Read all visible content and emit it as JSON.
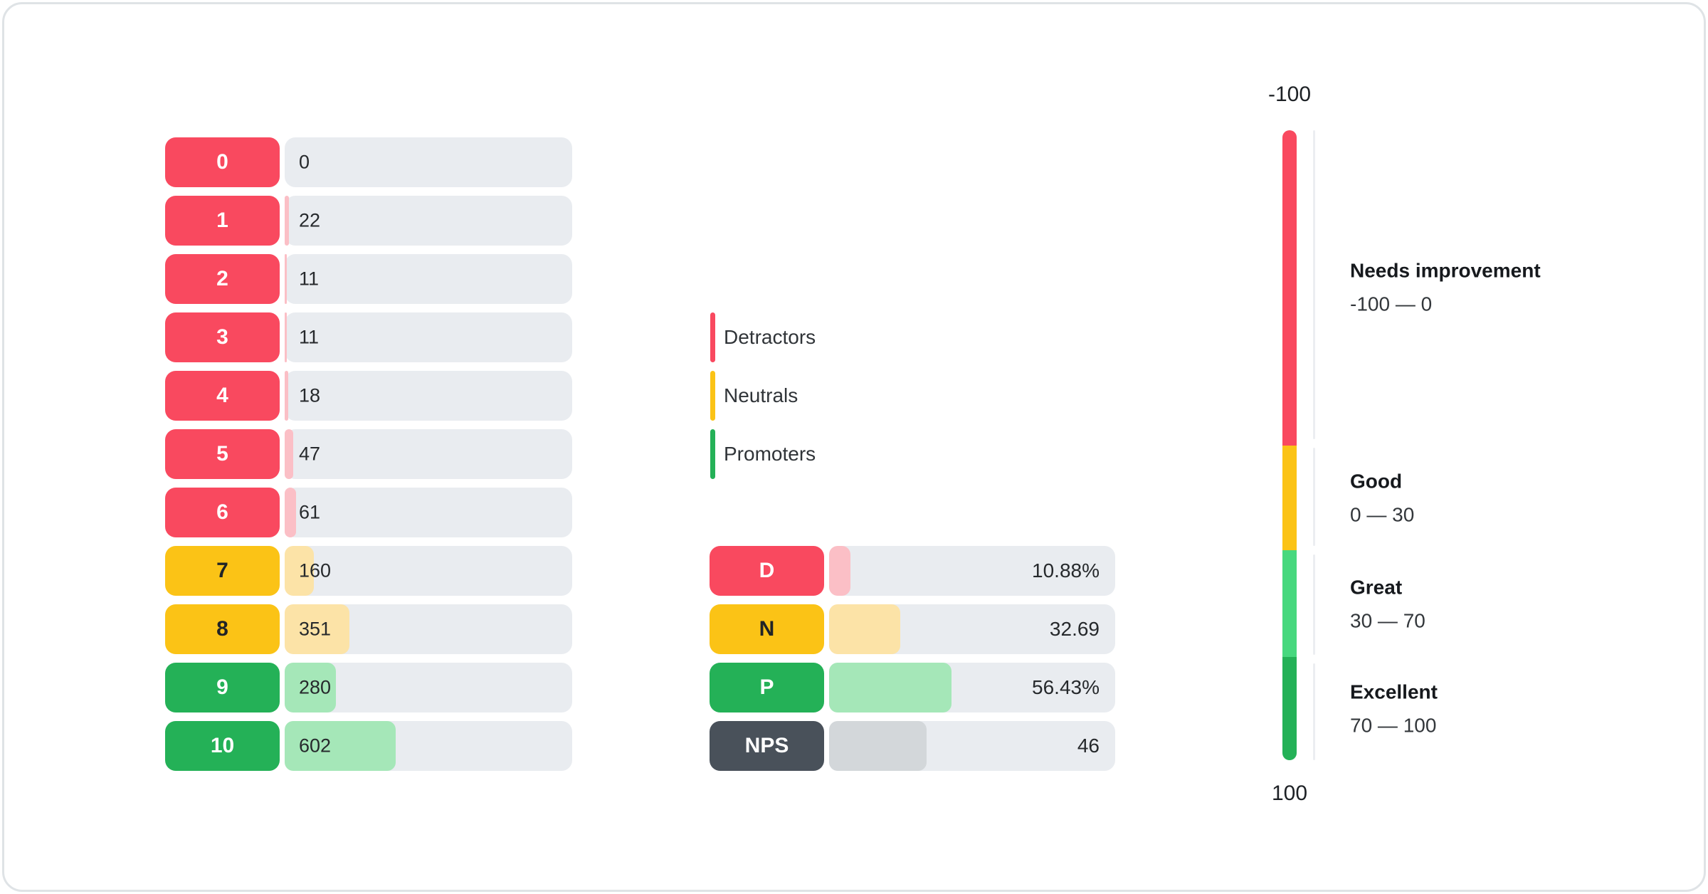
{
  "palette": {
    "red": "#f9495f",
    "pink_fill": "#fbbfc6",
    "yellow": "#fbc316",
    "yellow_fill": "#fce3a7",
    "green": "#24b157",
    "green_fill": "#a5e7b8",
    "gauge_light_green": "#47d87e",
    "slate": "#49515a",
    "gray_fill": "#d3d7da",
    "track": "#e9ecf0",
    "dark_text": "#26292c",
    "white_text": "#ffffff"
  },
  "score_chart": {
    "rows": [
      {
        "score": "0",
        "count": "0",
        "fill_pct": 0,
        "chip_bg": "#f9495f",
        "chip_fg": "#ffffff",
        "fill_bg": "#fbbfc6"
      },
      {
        "score": "1",
        "count": "22",
        "fill_pct": 1.41,
        "chip_bg": "#f9495f",
        "chip_fg": "#ffffff",
        "fill_bg": "#fbbfc6"
      },
      {
        "score": "2",
        "count": "11",
        "fill_pct": 0.7,
        "chip_bg": "#f9495f",
        "chip_fg": "#ffffff",
        "fill_bg": "#fbbfc6"
      },
      {
        "score": "3",
        "count": "11",
        "fill_pct": 0.7,
        "chip_bg": "#f9495f",
        "chip_fg": "#ffffff",
        "fill_bg": "#fbbfc6"
      },
      {
        "score": "4",
        "count": "18",
        "fill_pct": 1.15,
        "chip_bg": "#f9495f",
        "chip_fg": "#ffffff",
        "fill_bg": "#fbbfc6"
      },
      {
        "score": "5",
        "count": "47",
        "fill_pct": 3.01,
        "chip_bg": "#f9495f",
        "chip_fg": "#ffffff",
        "fill_bg": "#fbbfc6"
      },
      {
        "score": "6",
        "count": "61",
        "fill_pct": 3.9,
        "chip_bg": "#f9495f",
        "chip_fg": "#ffffff",
        "fill_bg": "#fbbfc6"
      },
      {
        "score": "7",
        "count": "160",
        "fill_pct": 10.24,
        "chip_bg": "#fbc316",
        "chip_fg": "#212427",
        "fill_bg": "#fce3a7"
      },
      {
        "score": "8",
        "count": "351",
        "fill_pct": 22.46,
        "chip_bg": "#fbc316",
        "chip_fg": "#212427",
        "fill_bg": "#fce3a7"
      },
      {
        "score": "9",
        "count": "280",
        "fill_pct": 17.91,
        "chip_bg": "#24b157",
        "chip_fg": "#ffffff",
        "fill_bg": "#a5e7b8"
      },
      {
        "score": "10",
        "count": "602",
        "fill_pct": 38.52,
        "chip_bg": "#24b157",
        "chip_fg": "#ffffff",
        "fill_bg": "#a5e7b8"
      }
    ]
  },
  "legend": {
    "items": [
      {
        "label": "Detractors",
        "color": "#f9495f"
      },
      {
        "label": "Neutrals",
        "color": "#fbc316"
      },
      {
        "label": "Promoters",
        "color": "#24b157"
      }
    ]
  },
  "summary": {
    "rows": [
      {
        "key": "D",
        "value": "10.88%",
        "fill_pct": 7.4,
        "chip_bg": "#f9495f",
        "chip_fg": "#ffffff",
        "fill_bg": "#fbbfc6"
      },
      {
        "key": "N",
        "value": "32.69",
        "fill_pct": 24.8,
        "chip_bg": "#fbc316",
        "chip_fg": "#212427",
        "fill_bg": "#fce3a7"
      },
      {
        "key": "P",
        "value": "56.43%",
        "fill_pct": 42.8,
        "chip_bg": "#24b157",
        "chip_fg": "#ffffff",
        "fill_bg": "#a5e7b8"
      },
      {
        "key": "NPS",
        "value": "46",
        "fill_pct": 34.2,
        "chip_bg": "#49515a",
        "chip_fg": "#ffffff",
        "fill_bg": "#d3d7da"
      }
    ]
  },
  "gauge": {
    "top_tick": "-100",
    "bottom_tick": "100",
    "zones": [
      {
        "title": "Needs improvement",
        "range": "-100 — 0",
        "color": "#f9495f",
        "height_pct": 50.0
      },
      {
        "title": "Good",
        "range": "0 — 30",
        "color": "#fbc316",
        "height_pct": 16.7
      },
      {
        "title": "Great",
        "range": "30 — 70",
        "color": "#47d87e",
        "height_pct": 16.9
      },
      {
        "title": "Excellent",
        "range": "70 — 100",
        "color": "#24b157",
        "height_pct": 16.4
      }
    ]
  },
  "chart_data": [
    {
      "type": "bar",
      "orientation": "horizontal",
      "categories": [
        "0",
        "1",
        "2",
        "3",
        "4",
        "5",
        "6",
        "7",
        "8",
        "9",
        "10"
      ],
      "values": [
        0,
        22,
        11,
        11,
        18,
        47,
        61,
        160,
        351,
        280,
        602
      ],
      "groups": {
        "detractors": [
          "0",
          "1",
          "2",
          "3",
          "4",
          "5",
          "6"
        ],
        "neutrals": [
          "7",
          "8"
        ],
        "promoters": [
          "9",
          "10"
        ]
      },
      "legend": [
        "Detractors",
        "Neutrals",
        "Promoters"
      ],
      "legend_position": "middle-left"
    },
    {
      "type": "bar",
      "orientation": "horizontal",
      "categories": [
        "D",
        "N",
        "P",
        "NPS"
      ],
      "values": [
        10.88,
        32.69,
        56.43,
        46
      ],
      "value_labels": [
        "10.88%",
        "32.69",
        "56.43%",
        "46"
      ]
    },
    {
      "type": "gauge",
      "orientation": "vertical",
      "axis_range": [
        -100,
        100
      ],
      "tick_labels": [
        "-100",
        "100"
      ],
      "zones": [
        {
          "label": "Needs improvement",
          "from": -100,
          "to": 0
        },
        {
          "label": "Good",
          "from": 0,
          "to": 30
        },
        {
          "label": "Great",
          "from": 30,
          "to": 70
        },
        {
          "label": "Excellent",
          "from": 70,
          "to": 100
        }
      ]
    }
  ]
}
